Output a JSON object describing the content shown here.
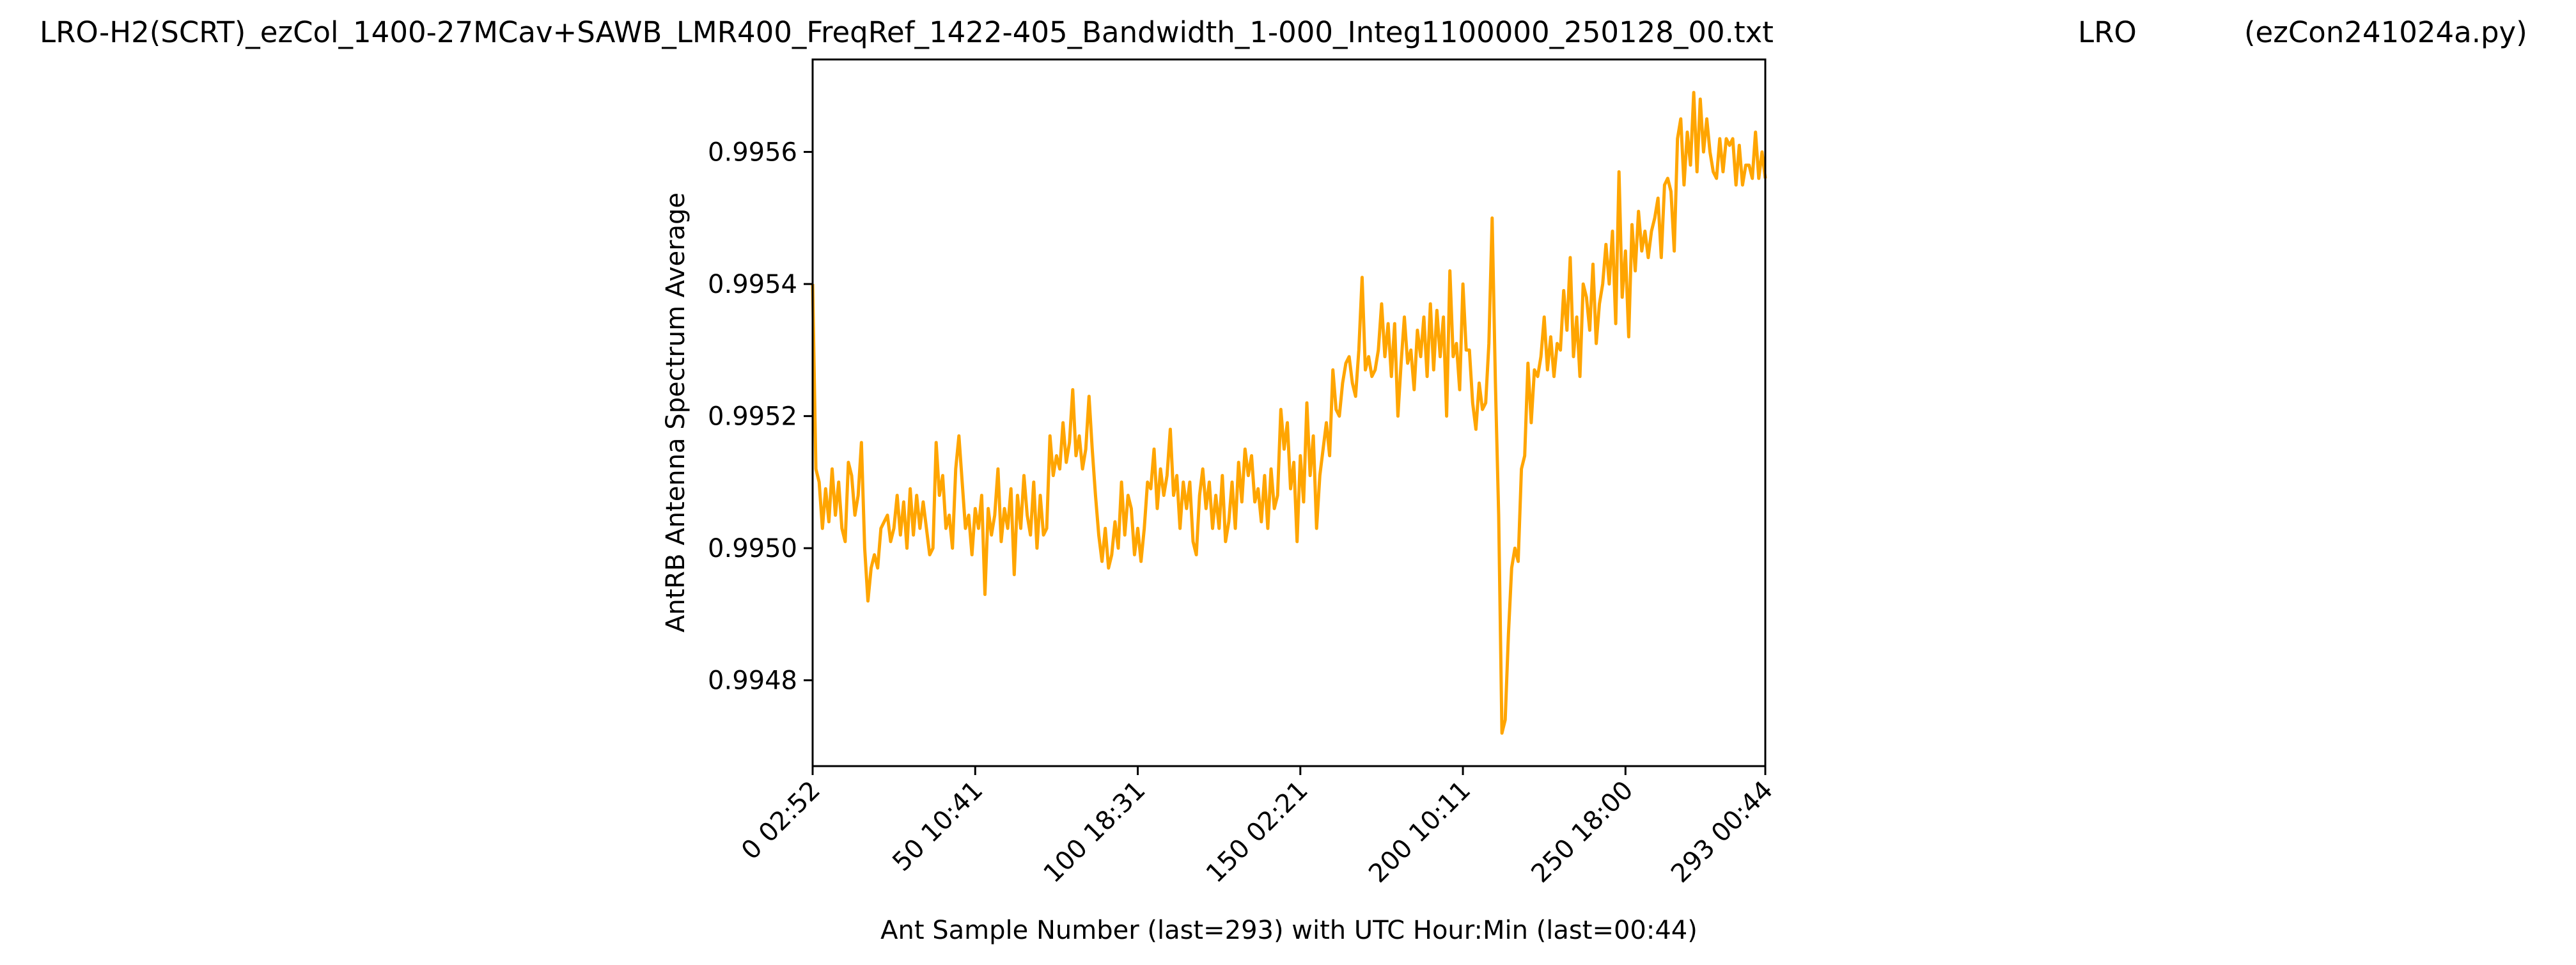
{
  "header": {
    "filename": "LRO-H2(SCRT)_ezCol_1400-27MCav+SAWB_LMR400_FreqRef_1422-405_Bandwidth_1-000_Integ1100000_250128_00.txt",
    "station": "LRO",
    "script": "(ezCon241024a.py)"
  },
  "colors": {
    "series": "#FFA500",
    "axes": "#000000",
    "background": "#FFFFFF"
  },
  "chart_data": {
    "type": "line",
    "title": "LRO-H2(SCRT)_ezCol_1400-27MCav+SAWB_LMR400_FreqRef_1422-405_Bandwidth_1-000_Integ1100000_250128_00.txt",
    "xlabel": "Ant Sample Number (last=293) with UTC Hour:Min (last=00:44)",
    "ylabel": "AntRB Antenna Spectrum Average",
    "xlim": [
      0,
      293
    ],
    "ylim": [
      0.99467,
      0.99574
    ],
    "grid": false,
    "x_ticks": [
      {
        "value": 0,
        "label": "0  02:52"
      },
      {
        "value": 50,
        "label": "50  10:41"
      },
      {
        "value": 100,
        "label": "100  18:31"
      },
      {
        "value": 150,
        "label": "150  02:21"
      },
      {
        "value": 200,
        "label": "200  10:11"
      },
      {
        "value": 250,
        "label": "250  18:00"
      },
      {
        "value": 293,
        "label": "293  00:44"
      }
    ],
    "y_ticks": [
      {
        "value": 0.9948,
        "label": "0.9948"
      },
      {
        "value": 0.995,
        "label": "0.9950"
      },
      {
        "value": 0.9952,
        "label": "0.9952"
      },
      {
        "value": 0.9954,
        "label": "0.9954"
      },
      {
        "value": 0.9956,
        "label": "0.9956"
      }
    ],
    "series": [
      {
        "points": [
          [
            0,
            0.9954
          ],
          [
            1,
            0.99512
          ],
          [
            2,
            0.9951
          ],
          [
            3,
            0.99503
          ],
          [
            4,
            0.99509
          ],
          [
            5,
            0.99504
          ],
          [
            6,
            0.99512
          ],
          [
            7,
            0.99505
          ],
          [
            8,
            0.9951
          ],
          [
            9,
            0.99503
          ],
          [
            10,
            0.99501
          ],
          [
            11,
            0.99513
          ],
          [
            12,
            0.99511
          ],
          [
            13,
            0.99505
          ],
          [
            14,
            0.99508
          ],
          [
            15,
            0.99516
          ],
          [
            16,
            0.995
          ],
          [
            17,
            0.99492
          ],
          [
            18,
            0.99497
          ],
          [
            19,
            0.99499
          ],
          [
            20,
            0.99497
          ],
          [
            21,
            0.99503
          ],
          [
            22,
            0.99504
          ],
          [
            23,
            0.99505
          ],
          [
            24,
            0.99501
          ],
          [
            25,
            0.99503
          ],
          [
            26,
            0.99508
          ],
          [
            27,
            0.99502
          ],
          [
            28,
            0.99507
          ],
          [
            29,
            0.995
          ],
          [
            30,
            0.99509
          ],
          [
            31,
            0.99502
          ],
          [
            32,
            0.99508
          ],
          [
            33,
            0.99503
          ],
          [
            34,
            0.99507
          ],
          [
            35,
            0.99503
          ],
          [
            36,
            0.99499
          ],
          [
            37,
            0.995
          ],
          [
            38,
            0.99516
          ],
          [
            39,
            0.99508
          ],
          [
            40,
            0.99511
          ],
          [
            41,
            0.99503
          ],
          [
            42,
            0.99505
          ],
          [
            43,
            0.995
          ],
          [
            44,
            0.99512
          ],
          [
            45,
            0.99517
          ],
          [
            46,
            0.9951
          ],
          [
            47,
            0.99503
          ],
          [
            48,
            0.99505
          ],
          [
            49,
            0.99499
          ],
          [
            50,
            0.99506
          ],
          [
            51,
            0.99503
          ],
          [
            52,
            0.99508
          ],
          [
            53,
            0.99493
          ],
          [
            54,
            0.99506
          ],
          [
            55,
            0.99502
          ],
          [
            56,
            0.99505
          ],
          [
            57,
            0.99512
          ],
          [
            58,
            0.99501
          ],
          [
            59,
            0.99506
          ],
          [
            60,
            0.99503
          ],
          [
            61,
            0.99509
          ],
          [
            62,
            0.99496
          ],
          [
            63,
            0.99508
          ],
          [
            64,
            0.99503
          ],
          [
            65,
            0.99511
          ],
          [
            66,
            0.99505
          ],
          [
            67,
            0.99502
          ],
          [
            68,
            0.9951
          ],
          [
            69,
            0.995
          ],
          [
            70,
            0.99508
          ],
          [
            71,
            0.99502
          ],
          [
            72,
            0.99503
          ],
          [
            73,
            0.99517
          ],
          [
            74,
            0.99511
          ],
          [
            75,
            0.99514
          ],
          [
            76,
            0.99512
          ],
          [
            77,
            0.99519
          ],
          [
            78,
            0.99513
          ],
          [
            79,
            0.99516
          ],
          [
            80,
            0.99524
          ],
          [
            81,
            0.99514
          ],
          [
            82,
            0.99517
          ],
          [
            83,
            0.99512
          ],
          [
            84,
            0.99515
          ],
          [
            85,
            0.99523
          ],
          [
            86,
            0.99515
          ],
          [
            87,
            0.99508
          ],
          [
            88,
            0.99502
          ],
          [
            89,
            0.99498
          ],
          [
            90,
            0.99503
          ],
          [
            91,
            0.99497
          ],
          [
            92,
            0.99499
          ],
          [
            93,
            0.99504
          ],
          [
            94,
            0.995
          ],
          [
            95,
            0.9951
          ],
          [
            96,
            0.99502
          ],
          [
            97,
            0.99508
          ],
          [
            98,
            0.99506
          ],
          [
            99,
            0.99499
          ],
          [
            100,
            0.99503
          ],
          [
            101,
            0.99498
          ],
          [
            102,
            0.99503
          ],
          [
            103,
            0.9951
          ],
          [
            104,
            0.99509
          ],
          [
            105,
            0.99515
          ],
          [
            106,
            0.99506
          ],
          [
            107,
            0.99512
          ],
          [
            108,
            0.99508
          ],
          [
            109,
            0.99511
          ],
          [
            110,
            0.99518
          ],
          [
            111,
            0.99508
          ],
          [
            112,
            0.99511
          ],
          [
            113,
            0.99503
          ],
          [
            114,
            0.9951
          ],
          [
            115,
            0.99506
          ],
          [
            116,
            0.9951
          ],
          [
            117,
            0.99501
          ],
          [
            118,
            0.99499
          ],
          [
            119,
            0.99508
          ],
          [
            120,
            0.99512
          ],
          [
            121,
            0.99506
          ],
          [
            122,
            0.9951
          ],
          [
            123,
            0.99503
          ],
          [
            124,
            0.99508
          ],
          [
            125,
            0.99503
          ],
          [
            126,
            0.99511
          ],
          [
            127,
            0.99501
          ],
          [
            128,
            0.99504
          ],
          [
            129,
            0.9951
          ],
          [
            130,
            0.99503
          ],
          [
            131,
            0.99513
          ],
          [
            132,
            0.99507
          ],
          [
            133,
            0.99515
          ],
          [
            134,
            0.99511
          ],
          [
            135,
            0.99514
          ],
          [
            136,
            0.99507
          ],
          [
            137,
            0.99509
          ],
          [
            138,
            0.99504
          ],
          [
            139,
            0.99511
          ],
          [
            140,
            0.99503
          ],
          [
            141,
            0.99512
          ],
          [
            142,
            0.99506
          ],
          [
            143,
            0.99508
          ],
          [
            144,
            0.99521
          ],
          [
            145,
            0.99515
          ],
          [
            146,
            0.99519
          ],
          [
            147,
            0.99509
          ],
          [
            148,
            0.99513
          ],
          [
            149,
            0.99501
          ],
          [
            150,
            0.99514
          ],
          [
            151,
            0.99507
          ],
          [
            152,
            0.99522
          ],
          [
            153,
            0.99511
          ],
          [
            154,
            0.99517
          ],
          [
            155,
            0.99503
          ],
          [
            156,
            0.99511
          ],
          [
            157,
            0.99515
          ],
          [
            158,
            0.99519
          ],
          [
            159,
            0.99514
          ],
          [
            160,
            0.99527
          ],
          [
            161,
            0.99521
          ],
          [
            162,
            0.9952
          ],
          [
            163,
            0.99525
          ],
          [
            164,
            0.99528
          ],
          [
            165,
            0.99529
          ],
          [
            166,
            0.99525
          ],
          [
            167,
            0.99523
          ],
          [
            168,
            0.9953
          ],
          [
            169,
            0.99541
          ],
          [
            170,
            0.99527
          ],
          [
            171,
            0.99529
          ],
          [
            172,
            0.99526
          ],
          [
            173,
            0.99527
          ],
          [
            174,
            0.9953
          ],
          [
            175,
            0.99537
          ],
          [
            176,
            0.99529
          ],
          [
            177,
            0.99534
          ],
          [
            178,
            0.99526
          ],
          [
            179,
            0.99534
          ],
          [
            180,
            0.9952
          ],
          [
            181,
            0.99528
          ],
          [
            182,
            0.99535
          ],
          [
            183,
            0.99528
          ],
          [
            184,
            0.9953
          ],
          [
            185,
            0.99524
          ],
          [
            186,
            0.99533
          ],
          [
            187,
            0.99529
          ],
          [
            188,
            0.99535
          ],
          [
            189,
            0.99526
          ],
          [
            190,
            0.99537
          ],
          [
            191,
            0.99527
          ],
          [
            192,
            0.99536
          ],
          [
            193,
            0.99529
          ],
          [
            194,
            0.99535
          ],
          [
            195,
            0.9952
          ],
          [
            196,
            0.99542
          ],
          [
            197,
            0.99529
          ],
          [
            198,
            0.99531
          ],
          [
            199,
            0.99524
          ],
          [
            200,
            0.9954
          ],
          [
            201,
            0.9953
          ],
          [
            202,
            0.9953
          ],
          [
            203,
            0.99522
          ],
          [
            204,
            0.99518
          ],
          [
            205,
            0.99525
          ],
          [
            206,
            0.99521
          ],
          [
            207,
            0.99522
          ],
          [
            208,
            0.99531
          ],
          [
            209,
            0.9955
          ],
          [
            210,
            0.99525
          ],
          [
            211,
            0.99505
          ],
          [
            212,
            0.99472
          ],
          [
            213,
            0.99474
          ],
          [
            214,
            0.99487
          ],
          [
            215,
            0.99497
          ],
          [
            216,
            0.995
          ],
          [
            217,
            0.99498
          ],
          [
            218,
            0.99512
          ],
          [
            219,
            0.99514
          ],
          [
            220,
            0.99528
          ],
          [
            221,
            0.99519
          ],
          [
            222,
            0.99527
          ],
          [
            223,
            0.99526
          ],
          [
            224,
            0.99529
          ],
          [
            225,
            0.99535
          ],
          [
            226,
            0.99527
          ],
          [
            227,
            0.99532
          ],
          [
            228,
            0.99526
          ],
          [
            229,
            0.99531
          ],
          [
            230,
            0.9953
          ],
          [
            231,
            0.99539
          ],
          [
            232,
            0.99533
          ],
          [
            233,
            0.99544
          ],
          [
            234,
            0.99529
          ],
          [
            235,
            0.99535
          ],
          [
            236,
            0.99526
          ],
          [
            237,
            0.9954
          ],
          [
            238,
            0.99538
          ],
          [
            239,
            0.99533
          ],
          [
            240,
            0.99543
          ],
          [
            241,
            0.99531
          ],
          [
            242,
            0.99537
          ],
          [
            243,
            0.9954
          ],
          [
            244,
            0.99546
          ],
          [
            245,
            0.9954
          ],
          [
            246,
            0.99548
          ],
          [
            247,
            0.99534
          ],
          [
            248,
            0.99557
          ],
          [
            249,
            0.99538
          ],
          [
            250,
            0.99545
          ],
          [
            251,
            0.99532
          ],
          [
            252,
            0.99549
          ],
          [
            253,
            0.99542
          ],
          [
            254,
            0.99551
          ],
          [
            255,
            0.99545
          ],
          [
            256,
            0.99548
          ],
          [
            257,
            0.99544
          ],
          [
            258,
            0.99548
          ],
          [
            259,
            0.9955
          ],
          [
            260,
            0.99553
          ],
          [
            261,
            0.99544
          ],
          [
            262,
            0.99555
          ],
          [
            263,
            0.99556
          ],
          [
            264,
            0.99554
          ],
          [
            265,
            0.99545
          ],
          [
            266,
            0.99562
          ],
          [
            267,
            0.99565
          ],
          [
            268,
            0.99555
          ],
          [
            269,
            0.99563
          ],
          [
            270,
            0.99558
          ],
          [
            271,
            0.99569
          ],
          [
            272,
            0.99557
          ],
          [
            273,
            0.99568
          ],
          [
            274,
            0.9956
          ],
          [
            275,
            0.99565
          ],
          [
            276,
            0.9956
          ],
          [
            277,
            0.99557
          ],
          [
            278,
            0.99556
          ],
          [
            279,
            0.99562
          ],
          [
            280,
            0.99557
          ],
          [
            281,
            0.99562
          ],
          [
            282,
            0.99561
          ],
          [
            283,
            0.99562
          ],
          [
            284,
            0.99555
          ],
          [
            285,
            0.99561
          ],
          [
            286,
            0.99555
          ],
          [
            287,
            0.99558
          ],
          [
            288,
            0.99558
          ],
          [
            289,
            0.99556
          ],
          [
            290,
            0.99563
          ],
          [
            291,
            0.99556
          ],
          [
            292,
            0.9956
          ],
          [
            293,
            0.99556
          ]
        ]
      }
    ]
  }
}
